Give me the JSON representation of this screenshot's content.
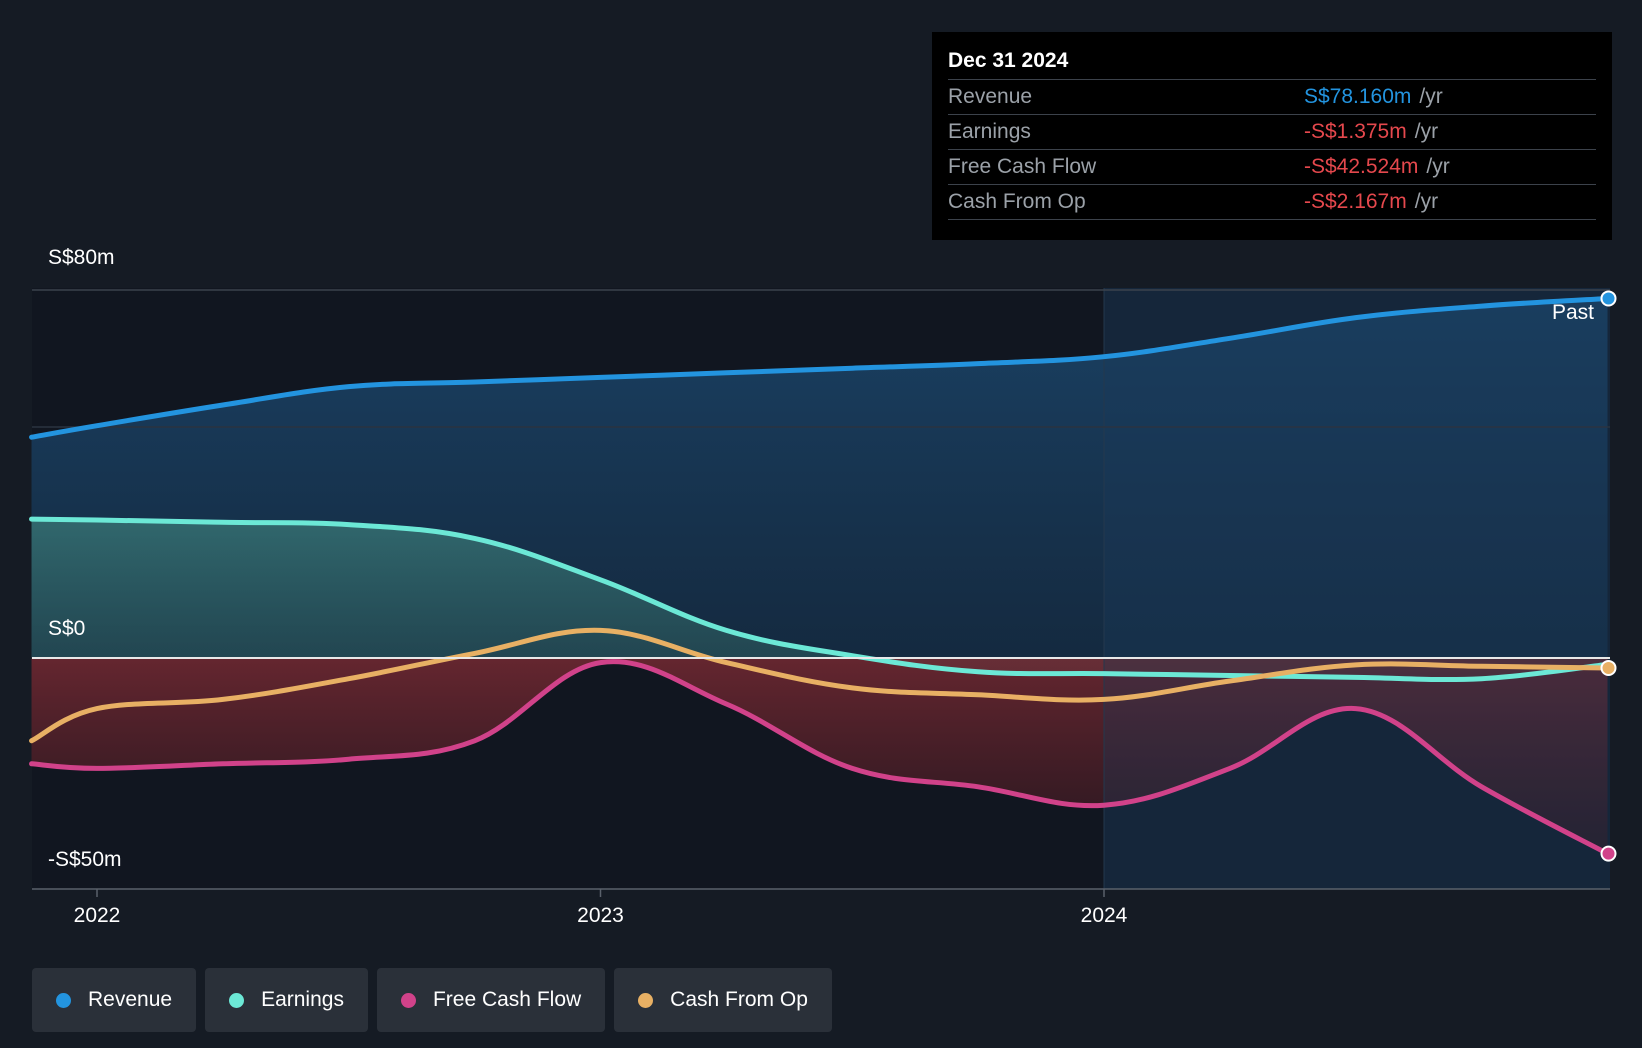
{
  "chart_data": {
    "type": "line",
    "y_tick_labels": [
      "S$80m",
      "S$0",
      "-S$50m"
    ],
    "ylim": [
      -50,
      80
    ],
    "x_tick_labels": [
      "2022",
      "2023",
      "2024"
    ],
    "past_label": "Past",
    "x": [
      2021.87,
      2022.0,
      2022.25,
      2022.5,
      2022.75,
      2023.0,
      2023.25,
      2023.5,
      2023.75,
      2024.0,
      2024.25,
      2024.5,
      2024.75,
      2025.0
    ],
    "series": [
      {
        "name": "Revenue",
        "color": "#2394df",
        "values": [
          48.0,
          50.5,
          55.0,
          59.0,
          60.0,
          61.0,
          62.0,
          63.0,
          64.0,
          65.5,
          69.5,
          74.0,
          76.5,
          78.16
        ]
      },
      {
        "name": "Earnings",
        "color": "#6ce8d6",
        "values": [
          30.2,
          30.0,
          29.5,
          29.0,
          26.0,
          17.0,
          6.0,
          0.5,
          -3.0,
          -3.4,
          -3.8,
          -4.2,
          -4.5,
          -1.375
        ]
      },
      {
        "name": "Free Cash Flow",
        "color": "#d1428a",
        "values": [
          -23.0,
          -24.0,
          -23.0,
          -22.0,
          -18.0,
          -1.0,
          -10.0,
          -24.0,
          -28.0,
          -32.0,
          -24.0,
          -11.0,
          -28.0,
          -42.524
        ]
      },
      {
        "name": "Cash From Op",
        "color": "#e8b064",
        "values": [
          -18.0,
          -11.0,
          -9.0,
          -4.5,
          1.0,
          6.0,
          -1.0,
          -6.5,
          -8.0,
          -9.0,
          -5.0,
          -1.5,
          -1.8,
          -2.167
        ]
      }
    ],
    "forecast_region_start": 2024.0
  },
  "tooltip": {
    "date": "Dec 31 2024",
    "unit": "/yr",
    "rows": [
      {
        "label": "Revenue",
        "value": "S$78.160m",
        "color": "#2394df"
      },
      {
        "label": "Earnings",
        "value": "-S$1.375m",
        "color": "#e5484d"
      },
      {
        "label": "Free Cash Flow",
        "value": "-S$42.524m",
        "color": "#e5484d"
      },
      {
        "label": "Cash From Op",
        "value": "-S$2.167m",
        "color": "#e5484d"
      }
    ]
  },
  "legend": [
    {
      "label": "Revenue",
      "color": "#2394df"
    },
    {
      "label": "Earnings",
      "color": "#6ce8d6"
    },
    {
      "label": "Free Cash Flow",
      "color": "#d1428a"
    },
    {
      "label": "Cash From Op",
      "color": "#e8b064"
    }
  ]
}
